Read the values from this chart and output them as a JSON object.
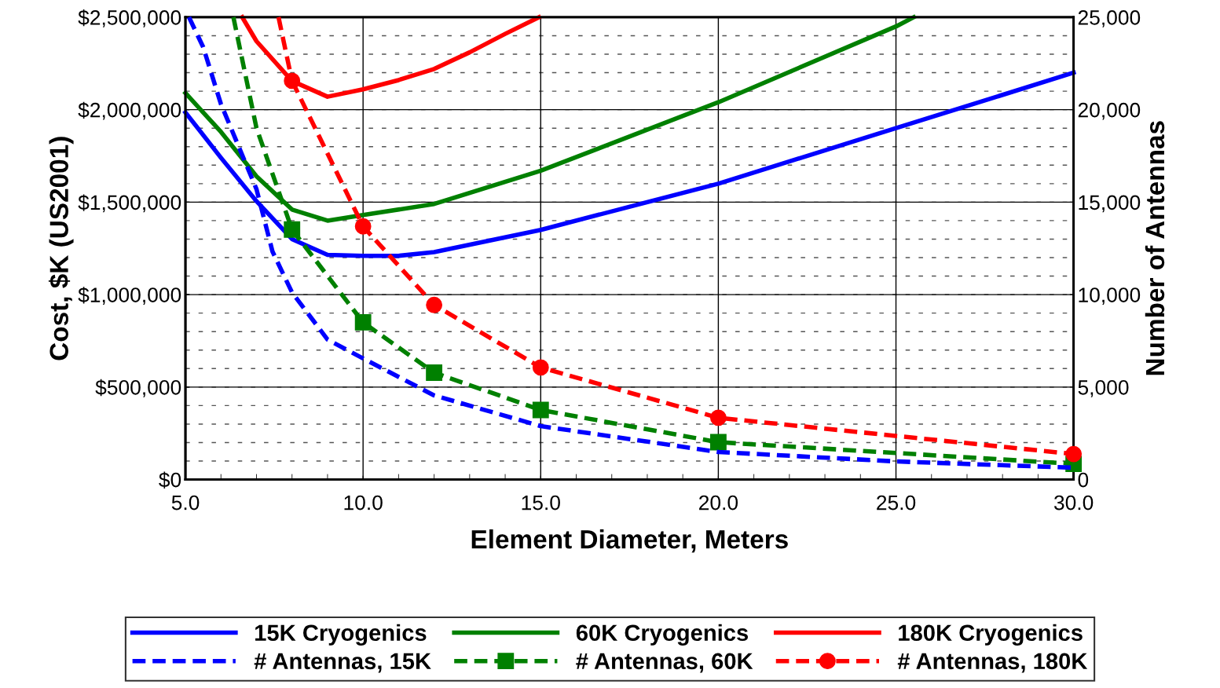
{
  "chart_data": {
    "type": "line",
    "xlabel": "Element Diameter, Meters",
    "ylabel": "Cost, $K (US2001)",
    "y2label": "Number of Antennas",
    "xlim": [
      5,
      30
    ],
    "xticks": [
      {
        "value": 5,
        "label": "5.0"
      },
      {
        "value": 10,
        "label": "10.0"
      },
      {
        "value": 15,
        "label": "15.0"
      },
      {
        "value": 20,
        "label": "20.0"
      },
      {
        "value": 25,
        "label": "25.0"
      },
      {
        "value": 30,
        "label": "30.0"
      }
    ],
    "ylim": [
      0,
      2500000
    ],
    "yticks": [
      {
        "value": 0,
        "label": "$0"
      },
      {
        "value": 500000,
        "label": "$500,000"
      },
      {
        "value": 1000000,
        "label": "$1,000,000"
      },
      {
        "value": 1500000,
        "label": "$1,500,000"
      },
      {
        "value": 2000000,
        "label": "$2,000,000"
      },
      {
        "value": 2500000,
        "label": "$2,500,000"
      }
    ],
    "y2lim": [
      0,
      25000
    ],
    "y2ticks": [
      0,
      {
        "value": 5000,
        "label": "5,000"
      },
      {
        "value": 10000,
        "label": "10,000"
      },
      {
        "value": 15000,
        "label": "15,000"
      },
      {
        "value": 20000,
        "label": "20,000"
      },
      {
        "value": 25000,
        "label": "25,000"
      }
    ],
    "grid": true,
    "legend": "bottom",
    "series": [
      {
        "name": "15K Cryogenics",
        "color": "#0000ff",
        "line_style": "solid",
        "marker": "none",
        "x": [
          5,
          6,
          7,
          8,
          9,
          10,
          11,
          12,
          15,
          20,
          25,
          30
        ],
        "values": [
          1985000,
          1740000,
          1505000,
          1300000,
          1215000,
          1210000,
          1210000,
          1230000,
          1350000,
          1600000,
          1900000,
          2200000
        ]
      },
      {
        "name": "60K Cryogenics",
        "color": "#008000",
        "line_style": "solid",
        "marker": "none",
        "x": [
          5,
          6,
          7,
          8,
          9,
          10,
          12,
          15,
          20,
          25,
          25.5
        ],
        "values": [
          2090000,
          1880000,
          1640000,
          1460000,
          1400000,
          1430000,
          1490000,
          1670000,
          2040000,
          2450000,
          2500000
        ]
      },
      {
        "name": "180K Cryogenics",
        "color": "#ff0000",
        "line_style": "solid",
        "marker": "none",
        "x": [
          6.6,
          7,
          8,
          9,
          10,
          11,
          12,
          13,
          14,
          14.95
        ],
        "values": [
          2500000,
          2370000,
          2155000,
          2070000,
          2110000,
          2160000,
          2220000,
          2310000,
          2410000,
          2500000
        ]
      },
      {
        "name": "# Antennas, 15K",
        "color": "#0000ff",
        "line_style": "dashed",
        "marker": "none",
        "axis": "y2",
        "x": [
          5.1,
          5.5,
          6,
          7,
          7.45,
          8,
          9,
          10,
          12,
          15,
          20,
          25,
          30
        ],
        "values": [
          25000,
          23380,
          20300,
          15700,
          12330,
          10120,
          7570,
          6550,
          4550,
          2890,
          1490,
          980,
          640
        ]
      },
      {
        "name": "# Antennas, 60K",
        "color": "#008000",
        "line_style": "dashed",
        "marker": "square",
        "axis": "y2",
        "x": [
          8,
          10,
          12,
          15,
          20,
          30
        ],
        "values": [
          13520,
          8500,
          5780,
          3760,
          2020,
          850
        ]
      },
      {
        "name": "# Antennas, 180K",
        "color": "#ff0000",
        "line_style": "dashed",
        "marker": "circle",
        "axis": "y2",
        "x": [
          8,
          10,
          12,
          15,
          20,
          30
        ],
        "values": [
          21560,
          13690,
          9440,
          6060,
          3340,
          1380
        ]
      },
      {
        "color": "#008000",
        "line_style": "dashed",
        "marker": "none",
        "axis": "y2",
        "x": [
          6.35,
          7,
          8
        ],
        "values": [
          25000,
          19000,
          13520
        ]
      },
      {
        "color": "#ff0000",
        "line_style": "dashed",
        "marker": "none",
        "axis": "y2",
        "x": [
          7.62,
          8
        ],
        "values": [
          25000,
          21560
        ]
      }
    ]
  }
}
